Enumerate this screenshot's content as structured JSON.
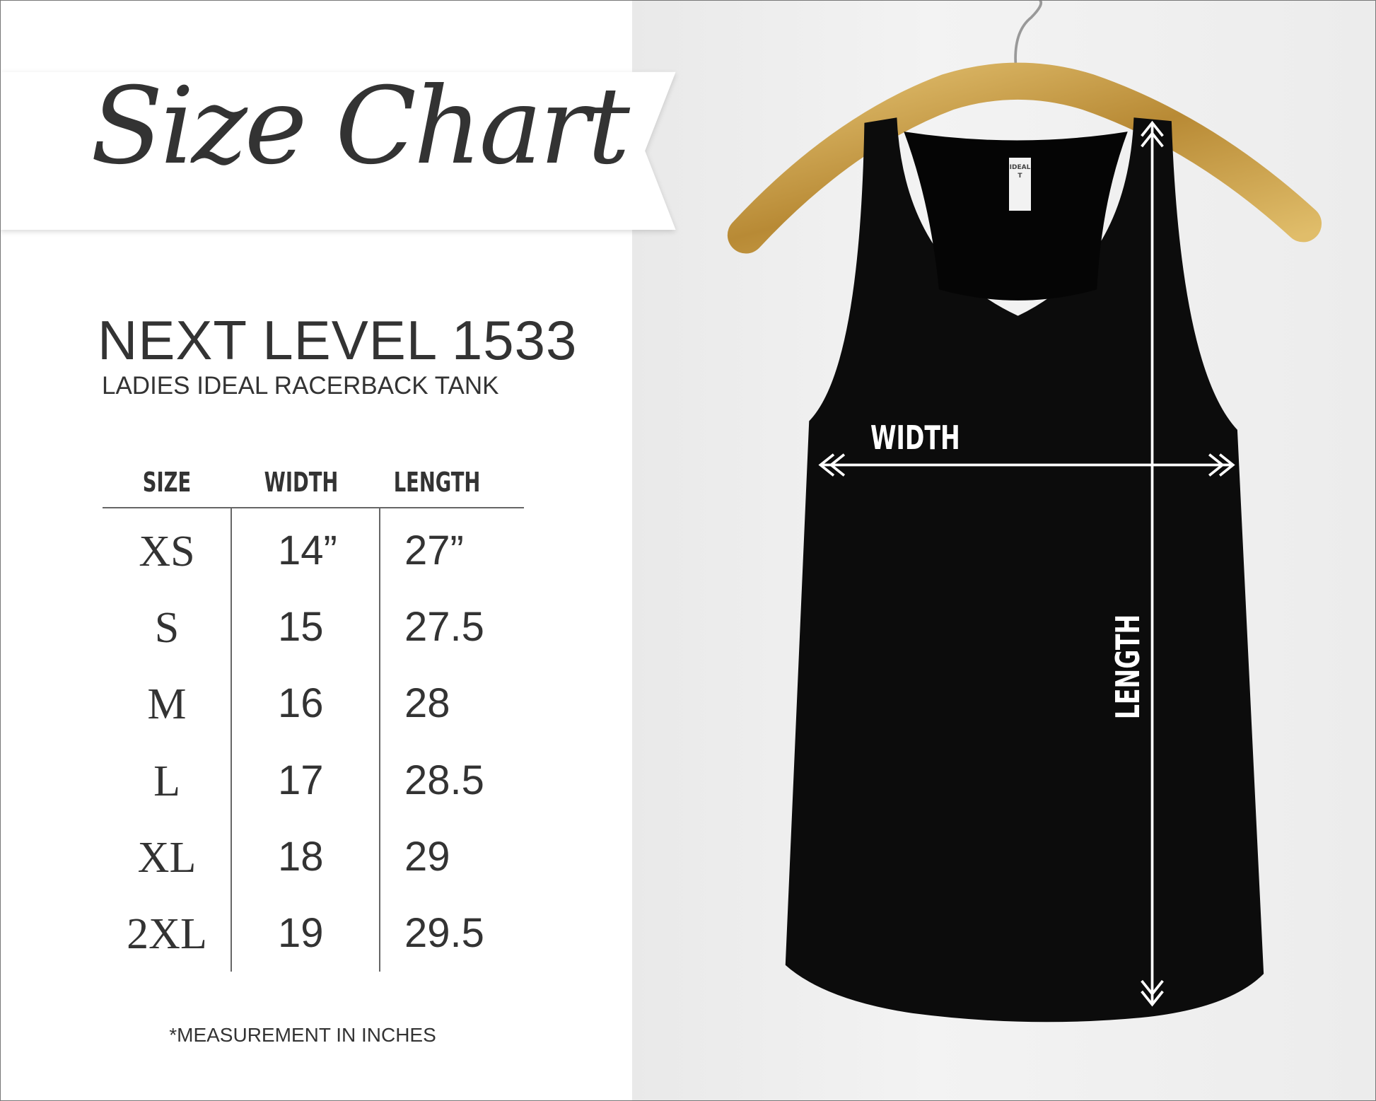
{
  "heading": "Size Chart",
  "product": {
    "name": "NEXT LEVEL 1533",
    "description": "LADIES IDEAL RACERBACK TANK",
    "tag_text": "IDEAL T"
  },
  "table": {
    "headers": [
      "SIZE",
      "WIDTH",
      "LENGTH"
    ],
    "rows": [
      {
        "size": "XS",
        "width": "14”",
        "length": "27”"
      },
      {
        "size": "S",
        "width": "15",
        "length": "27.5"
      },
      {
        "size": "M",
        "width": "16",
        "length": "28"
      },
      {
        "size": "L",
        "width": "17",
        "length": "28.5"
      },
      {
        "size": "XL",
        "width": "18",
        "length": "29"
      },
      {
        "size": "2XL",
        "width": "19",
        "length": "29.5"
      }
    ]
  },
  "footnote": "*MEASUREMENT IN INCHES",
  "photo": {
    "width_label": "WIDTH",
    "length_label": "LENGTH",
    "colors": {
      "tank": "#0c0c0c",
      "hanger": "#c9a24a",
      "background": "#ececec",
      "arrows": "#ffffff"
    }
  }
}
